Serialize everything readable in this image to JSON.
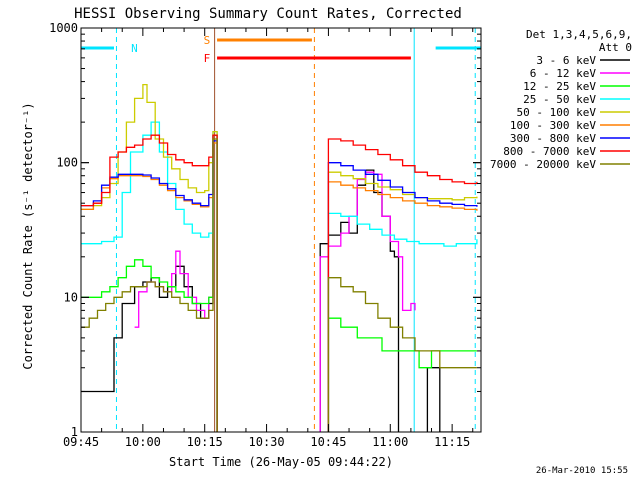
{
  "chart_data": {
    "type": "line",
    "title": "HESSI Observing Summary Count Rates, Corrected",
    "ylabel": "Corrected Count Rate (s⁻¹ detector⁻¹)",
    "xlabel": "Start Time (26-May-05 09:44:22)",
    "y_scale": "log",
    "ylim": [
      1,
      1000
    ],
    "y_ticks": [
      "1",
      "10",
      "100",
      "1000"
    ],
    "xlim_min": [
      585,
      682
    ],
    "x_ticks": [
      {
        "min": 585,
        "label": "09:45"
      },
      {
        "min": 600,
        "label": "10:00"
      },
      {
        "min": 615,
        "label": "10:15"
      },
      {
        "min": 630,
        "label": "10:30"
      },
      {
        "min": 645,
        "label": "10:45"
      },
      {
        "min": 660,
        "label": "11:00"
      },
      {
        "min": 675,
        "label": "11:15"
      }
    ],
    "legend_header": [
      "Det 1,3,4,5,6,9,",
      "Att 0"
    ],
    "legend_position": "right",
    "series": [
      {
        "name": "3 - 6 keV",
        "color": "#000000",
        "points": [
          [
            585,
            2
          ],
          [
            592,
            2
          ],
          [
            593,
            5
          ],
          [
            595,
            9
          ],
          [
            598,
            12
          ],
          [
            600,
            13
          ],
          [
            602,
            14
          ],
          [
            604,
            10
          ],
          [
            606,
            12
          ],
          [
            608,
            17
          ],
          [
            610,
            12
          ],
          [
            612,
            9
          ],
          [
            614,
            7
          ],
          [
            616,
            9
          ],
          [
            617,
            160
          ],
          [
            618,
            0
          ],
          [
            642,
            0
          ],
          [
            643,
            25
          ],
          [
            645,
            29
          ],
          [
            648,
            36
          ],
          [
            650,
            30
          ],
          [
            652,
            68
          ],
          [
            654,
            88
          ],
          [
            656,
            60
          ],
          [
            658,
            40
          ],
          [
            660,
            22
          ],
          [
            661,
            20
          ],
          [
            662,
            0
          ],
          [
            668,
            0
          ],
          [
            669,
            3
          ],
          [
            672,
            1
          ],
          [
            675,
            1
          ],
          [
            680,
            1
          ]
        ]
      },
      {
        "name": "6 - 12 keV",
        "color": "#ff00ff",
        "points": [
          [
            598,
            6
          ],
          [
            599,
            11
          ],
          [
            601,
            13
          ],
          [
            603,
            12
          ],
          [
            605,
            11
          ],
          [
            607,
            15
          ],
          [
            608,
            22
          ],
          [
            609,
            15
          ],
          [
            611,
            10
          ],
          [
            613,
            8
          ],
          [
            615,
            7
          ],
          [
            616,
            10
          ],
          [
            617,
            160
          ],
          [
            618,
            0
          ],
          [
            642,
            0
          ],
          [
            643,
            20
          ],
          [
            645,
            24
          ],
          [
            648,
            30
          ],
          [
            650,
            40
          ],
          [
            652,
            75
          ],
          [
            654,
            85
          ],
          [
            656,
            82
          ],
          [
            658,
            40
          ],
          [
            660,
            26
          ],
          [
            662,
            20
          ],
          [
            663,
            8
          ],
          [
            665,
            9
          ],
          [
            666,
            8
          ]
        ]
      },
      {
        "name": "12 - 25 keV",
        "color": "#00ff00",
        "points": [
          [
            585,
            10
          ],
          [
            588,
            10
          ],
          [
            590,
            11
          ],
          [
            592,
            12
          ],
          [
            594,
            14
          ],
          [
            596,
            17
          ],
          [
            598,
            19
          ],
          [
            600,
            17
          ],
          [
            602,
            14
          ],
          [
            604,
            13
          ],
          [
            606,
            12
          ],
          [
            608,
            11
          ],
          [
            610,
            10
          ],
          [
            612,
            9
          ],
          [
            614,
            9
          ],
          [
            616,
            10
          ],
          [
            617,
            160
          ],
          [
            618,
            0
          ],
          [
            644,
            0
          ],
          [
            645,
            7
          ],
          [
            648,
            6
          ],
          [
            652,
            5
          ],
          [
            655,
            5
          ],
          [
            658,
            4
          ],
          [
            661,
            4
          ],
          [
            664,
            4
          ],
          [
            667,
            3
          ],
          [
            670,
            4
          ],
          [
            673,
            4
          ],
          [
            677,
            4
          ],
          [
            681,
            4
          ]
        ]
      },
      {
        "name": "25 - 50 keV",
        "color": "#00ffff",
        "points": [
          [
            585,
            25
          ],
          [
            590,
            26
          ],
          [
            593,
            28
          ],
          [
            595,
            60
          ],
          [
            597,
            120
          ],
          [
            600,
            160
          ],
          [
            602,
            200
          ],
          [
            604,
            120
          ],
          [
            606,
            70
          ],
          [
            608,
            45
          ],
          [
            610,
            35
          ],
          [
            612,
            30
          ],
          [
            614,
            28
          ],
          [
            616,
            30
          ],
          [
            617,
            170
          ],
          [
            618,
            0
          ],
          [
            644,
            0
          ],
          [
            645,
            42
          ],
          [
            648,
            40
          ],
          [
            652,
            35
          ],
          [
            655,
            32
          ],
          [
            658,
            29
          ],
          [
            661,
            27
          ],
          [
            664,
            26
          ],
          [
            667,
            25
          ],
          [
            670,
            25
          ],
          [
            673,
            24
          ],
          [
            676,
            25
          ],
          [
            679,
            25
          ],
          [
            681,
            27
          ]
        ]
      },
      {
        "name": "50 - 100 keV",
        "color": "#cccc00",
        "points": [
          [
            585,
            45
          ],
          [
            588,
            48
          ],
          [
            590,
            55
          ],
          [
            592,
            70
          ],
          [
            594,
            120
          ],
          [
            596,
            200
          ],
          [
            598,
            300
          ],
          [
            600,
            380
          ],
          [
            601,
            280
          ],
          [
            603,
            150
          ],
          [
            605,
            110
          ],
          [
            607,
            90
          ],
          [
            609,
            75
          ],
          [
            611,
            65
          ],
          [
            613,
            60
          ],
          [
            615,
            62
          ],
          [
            616,
            100
          ],
          [
            617,
            170
          ],
          [
            618,
            0
          ],
          [
            644,
            0
          ],
          [
            645,
            85
          ],
          [
            648,
            80
          ],
          [
            651,
            76
          ],
          [
            654,
            70
          ],
          [
            657,
            66
          ],
          [
            660,
            63
          ],
          [
            663,
            58
          ],
          [
            666,
            55
          ],
          [
            669,
            54
          ],
          [
            672,
            54
          ],
          [
            675,
            53
          ],
          [
            678,
            55
          ],
          [
            681,
            56
          ]
        ]
      },
      {
        "name": "100 - 300 keV",
        "color": "#ff7f00",
        "points": [
          [
            585,
            45
          ],
          [
            588,
            50
          ],
          [
            590,
            65
          ],
          [
            592,
            76
          ],
          [
            594,
            80
          ],
          [
            596,
            80
          ],
          [
            598,
            80
          ],
          [
            600,
            79
          ],
          [
            602,
            75
          ],
          [
            604,
            68
          ],
          [
            606,
            62
          ],
          [
            608,
            55
          ],
          [
            610,
            52
          ],
          [
            612,
            49
          ],
          [
            614,
            47
          ],
          [
            616,
            55
          ],
          [
            617,
            140
          ],
          [
            618,
            0
          ],
          [
            644,
            0
          ],
          [
            645,
            72
          ],
          [
            648,
            68
          ],
          [
            651,
            65
          ],
          [
            654,
            62
          ],
          [
            657,
            58
          ],
          [
            660,
            55
          ],
          [
            663,
            52
          ],
          [
            666,
            50
          ],
          [
            669,
            48
          ],
          [
            672,
            47
          ],
          [
            675,
            46
          ],
          [
            678,
            45
          ],
          [
            681,
            44
          ]
        ]
      },
      {
        "name": "300 - 800 keV",
        "color": "#0000ff",
        "points": [
          [
            585,
            48
          ],
          [
            588,
            52
          ],
          [
            590,
            68
          ],
          [
            592,
            78
          ],
          [
            594,
            82
          ],
          [
            596,
            82
          ],
          [
            598,
            82
          ],
          [
            600,
            81
          ],
          [
            602,
            77
          ],
          [
            604,
            70
          ],
          [
            606,
            64
          ],
          [
            608,
            57
          ],
          [
            610,
            53
          ],
          [
            612,
            50
          ],
          [
            614,
            48
          ],
          [
            616,
            58
          ],
          [
            617,
            145
          ],
          [
            618,
            0
          ],
          [
            644,
            0
          ],
          [
            645,
            100
          ],
          [
            648,
            95
          ],
          [
            651,
            88
          ],
          [
            654,
            82
          ],
          [
            657,
            74
          ],
          [
            660,
            66
          ],
          [
            663,
            60
          ],
          [
            666,
            55
          ],
          [
            669,
            52
          ],
          [
            672,
            50
          ],
          [
            675,
            49
          ],
          [
            678,
            48
          ],
          [
            681,
            47
          ]
        ]
      },
      {
        "name": "800 - 7000 keV",
        "color": "#ff0000",
        "points": [
          [
            585,
            48
          ],
          [
            588,
            50
          ],
          [
            590,
            60
          ],
          [
            592,
            110
          ],
          [
            594,
            120
          ],
          [
            596,
            130
          ],
          [
            598,
            135
          ],
          [
            600,
            150
          ],
          [
            602,
            160
          ],
          [
            604,
            140
          ],
          [
            606,
            115
          ],
          [
            608,
            105
          ],
          [
            610,
            100
          ],
          [
            612,
            95
          ],
          [
            614,
            95
          ],
          [
            616,
            110
          ],
          [
            617,
            160
          ],
          [
            618,
            0
          ],
          [
            644,
            0
          ],
          [
            645,
            150
          ],
          [
            648,
            145
          ],
          [
            651,
            135
          ],
          [
            654,
            125
          ],
          [
            657,
            115
          ],
          [
            660,
            105
          ],
          [
            663,
            95
          ],
          [
            666,
            85
          ],
          [
            669,
            80
          ],
          [
            672,
            75
          ],
          [
            675,
            72
          ],
          [
            678,
            70
          ],
          [
            681,
            72
          ]
        ]
      },
      {
        "name": "7000 - 20000 keV",
        "color": "#808000",
        "points": [
          [
            585,
            6
          ],
          [
            587,
            7
          ],
          [
            589,
            8
          ],
          [
            591,
            9
          ],
          [
            593,
            10
          ],
          [
            595,
            11
          ],
          [
            597,
            12
          ],
          [
            599,
            12
          ],
          [
            601,
            13
          ],
          [
            603,
            12
          ],
          [
            605,
            11
          ],
          [
            607,
            10
          ],
          [
            609,
            9
          ],
          [
            611,
            8
          ],
          [
            613,
            7
          ],
          [
            615,
            7
          ],
          [
            616,
            8
          ],
          [
            617,
            150
          ],
          [
            618,
            0
          ],
          [
            644,
            0
          ],
          [
            645,
            14
          ],
          [
            648,
            12
          ],
          [
            651,
            11
          ],
          [
            654,
            9
          ],
          [
            657,
            7
          ],
          [
            660,
            6
          ],
          [
            663,
            5
          ],
          [
            666,
            4
          ],
          [
            669,
            4
          ],
          [
            672,
            3
          ],
          [
            675,
            3
          ],
          [
            678,
            3
          ],
          [
            681,
            3
          ]
        ]
      }
    ],
    "bars": [
      {
        "label": "N",
        "color": "#00e5ff",
        "segments": [
          [
            585,
            593
          ],
          [
            671,
            682
          ]
        ],
        "label_at": 597
      },
      {
        "label": "S",
        "color": "#ff8000",
        "segments": [
          [
            618,
            641
          ]
        ],
        "label_at": 617
      },
      {
        "label": "F",
        "color": "#ff0000",
        "segments": [
          [
            618,
            665
          ]
        ],
        "label_at": 617
      }
    ],
    "markers": [
      {
        "min": 593.6,
        "color": "#00e5ff",
        "style": "dash"
      },
      {
        "min": 617.4,
        "color": "#a0522d",
        "style": "solid"
      },
      {
        "min": 641.6,
        "color": "#ff8000",
        "style": "dash"
      },
      {
        "min": 665.8,
        "color": "#00e5ff",
        "style": "solid"
      },
      {
        "min": 680.6,
        "color": "#00e5ff",
        "style": "dash"
      }
    ],
    "grid": false
  },
  "footer": "26-Mar-2010 15:55"
}
